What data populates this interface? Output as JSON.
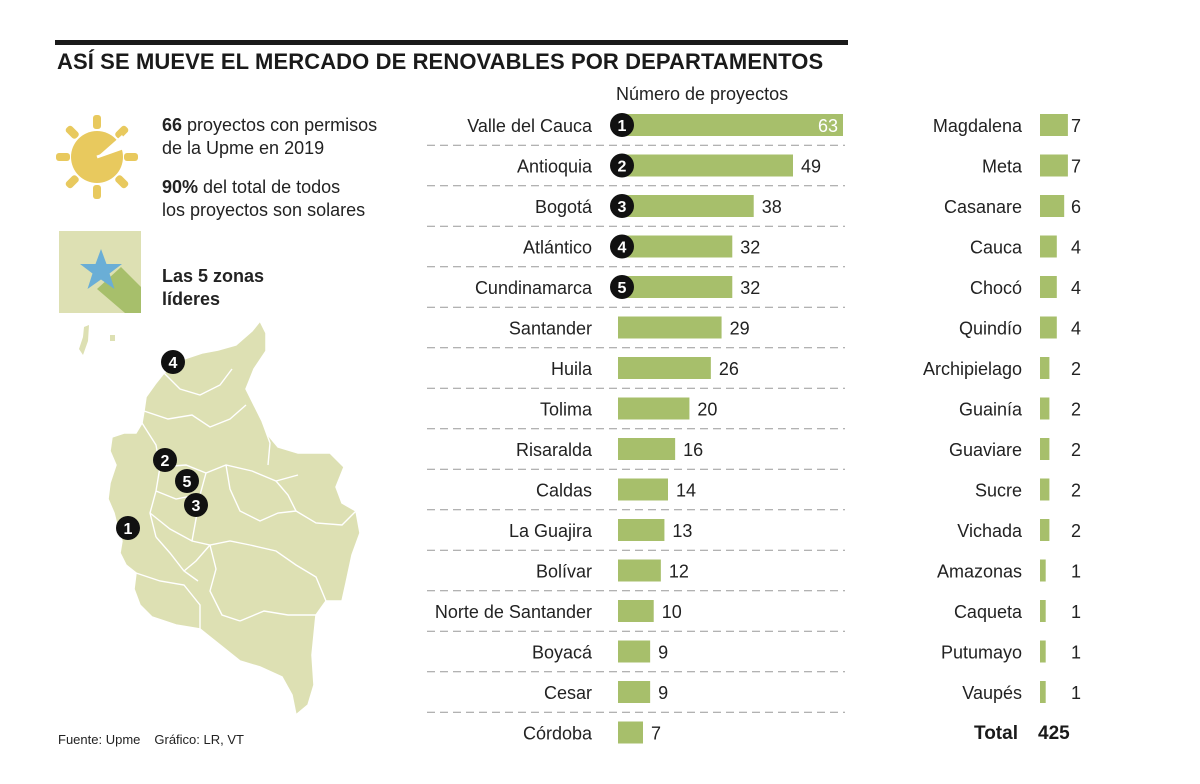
{
  "title": "ASÍ SE MUEVE EL MERCADO DE RENOVABLES POR DEPARTAMENTOS",
  "stats": {
    "line1_num": "66",
    "line1_text": " proyectos con permisos",
    "line2_text": "de la Upme en 2019",
    "line3_num": "90%",
    "line3_text": " del total de todos",
    "line4_text": "los proyectos son solares"
  },
  "legend": {
    "line1": "Las 5 zonas",
    "line2": "líderes"
  },
  "source": {
    "fuente": "Fuente: Upme",
    "grafico": "Gráfico: LR, VT"
  },
  "colors": {
    "bar": "#a7bf6b",
    "map": "#dde0b3",
    "sun": "#e8c95e",
    "star": "#6aaed6",
    "badge": "#111111"
  },
  "chart_data": {
    "type": "bar",
    "orientation": "horizontal",
    "title": "",
    "xlabel": "Número de proyectos",
    "ylabel": "",
    "categories": [
      "Valle del Cauca",
      "Antioquia",
      "Bogotá",
      "Atlántico",
      "Cundinamarca",
      "Santander",
      "Huila",
      "Tolima",
      "Risaralda",
      "Caldas",
      "La Guajira",
      "Bolívar",
      "Norte de Santander",
      "Boyacá",
      "Cesar",
      "Córdoba",
      "Magdalena",
      "Meta",
      "Casanare",
      "Cauca",
      "Chocó",
      "Quindío",
      "Archipielago",
      "Guainía",
      "Guaviare",
      "Sucre",
      "Vichada",
      "Amazonas",
      "Caqueta",
      "Putumayo",
      "Vaupés"
    ],
    "values": [
      63,
      49,
      38,
      32,
      32,
      29,
      26,
      20,
      16,
      14,
      13,
      12,
      10,
      9,
      9,
      7,
      7,
      7,
      6,
      4,
      4,
      4,
      2,
      2,
      2,
      2,
      2,
      1,
      1,
      1,
      1
    ],
    "ranks": [
      "1",
      "2",
      "3",
      "4",
      "5"
    ],
    "total_label": "Total",
    "total_value": "425"
  },
  "map": {
    "markers": [
      "1",
      "2",
      "3",
      "4",
      "5"
    ]
  }
}
